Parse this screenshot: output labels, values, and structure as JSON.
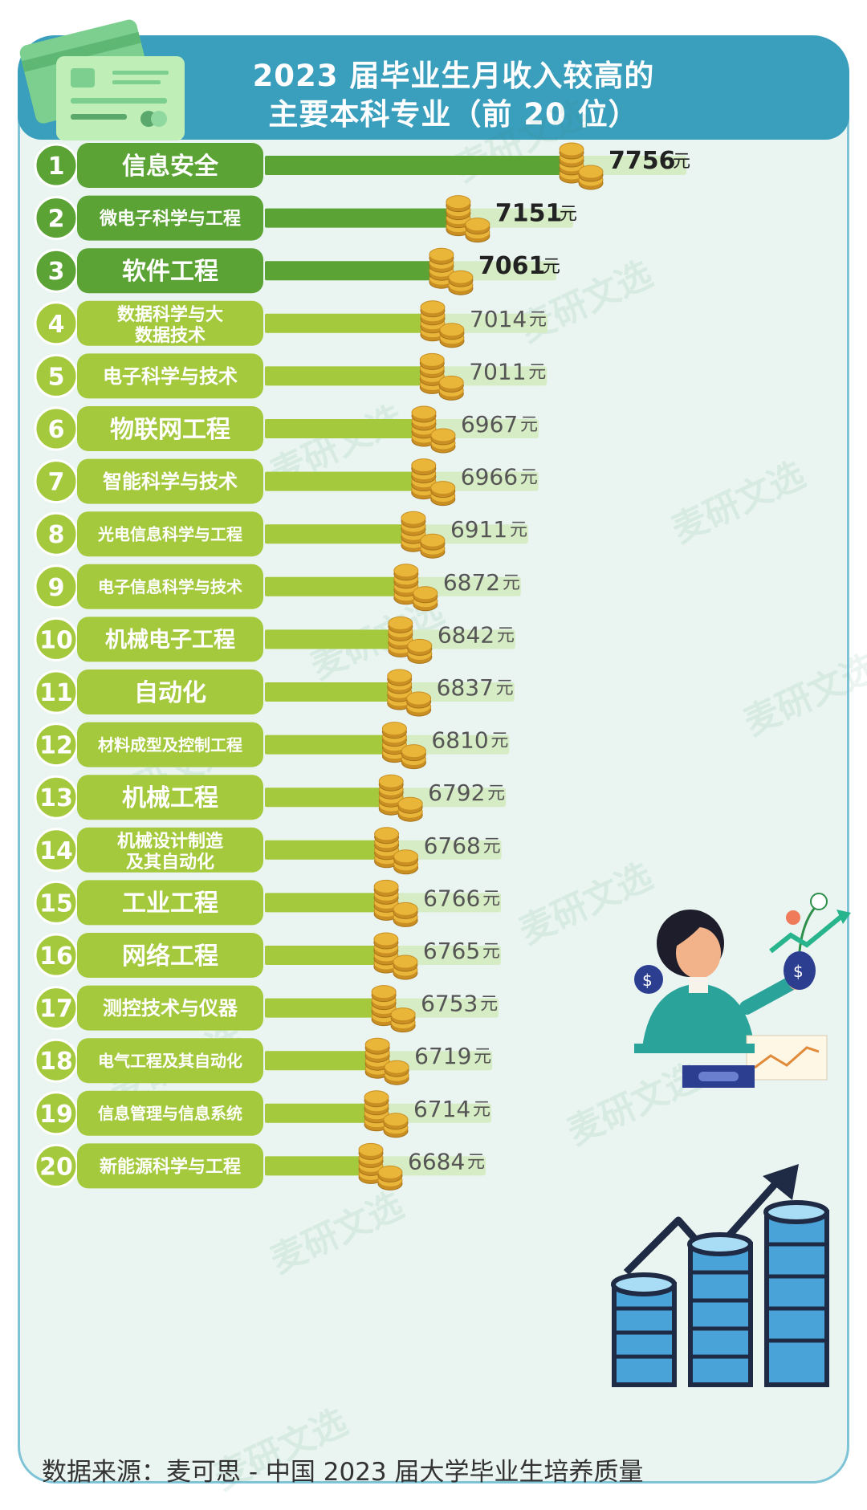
{
  "header": {
    "title_line1": "2023 届毕业生月收入较高的",
    "title_line2": "主要本科专业（前 20 位）"
  },
  "unit": "元",
  "source": "数据来源：麦可思 - 中国 2023 届大学毕业生培养质量",
  "watermark": "麦研文选",
  "colors": {
    "dark_green": "#5ba334",
    "light_green": "#a5c93d",
    "bar_track": "#d6ecc5",
    "title_bg": "#3a9ebd",
    "coin": "#e9b63a"
  },
  "chart_data": {
    "type": "bar",
    "orientation": "horizontal",
    "categories": [
      "信息安全",
      "微电子科学与工程",
      "软件工程",
      "数据科学与大数据技术",
      "电子科学与技术",
      "物联网工程",
      "智能科学与技术",
      "光电信息科学与工程",
      "电子信息科学与技术",
      "机械电子工程",
      "自动化",
      "材料成型及控制工程",
      "机械工程",
      "机械设计制造及其自动化",
      "工业工程",
      "网络工程",
      "测控技术与仪器",
      "电气工程及其自动化",
      "信息管理与信息系统",
      "新能源科学与工程"
    ],
    "values": [
      7756,
      7151,
      7061,
      7014,
      7011,
      6967,
      6966,
      6911,
      6872,
      6842,
      6837,
      6810,
      6792,
      6768,
      6766,
      6765,
      6753,
      6719,
      6714,
      6684
    ],
    "ranks": [
      "1",
      "2",
      "3",
      "4",
      "5",
      "6",
      "7",
      "8",
      "9",
      "10",
      "11",
      "12",
      "13",
      "14",
      "15",
      "16",
      "17",
      "18",
      "19",
      "20"
    ],
    "unit": "元",
    "highlight_top": 3
  }
}
